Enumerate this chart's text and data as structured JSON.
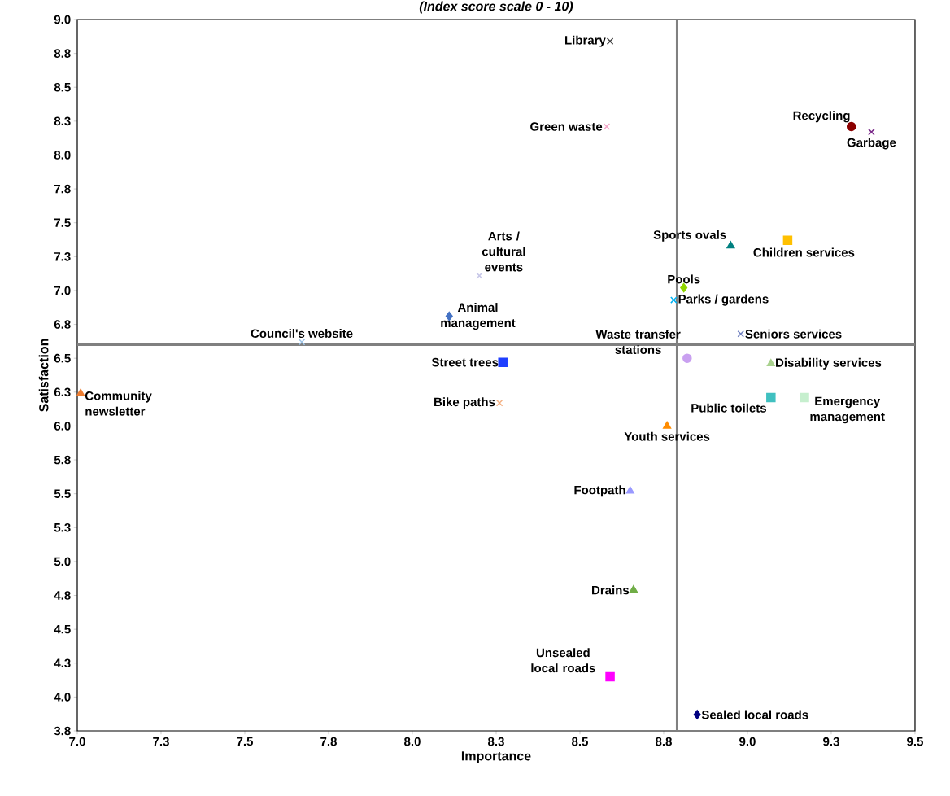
{
  "chart_data": {
    "type": "scatter",
    "title": "(Index score scale 0 - 10)",
    "xlabel": "Importance",
    "ylabel": "Satisfaction",
    "xlim": [
      7.0,
      9.5
    ],
    "ylim": [
      3.75,
      9.0
    ],
    "xticks": [
      {
        "value": 7.0,
        "label": "7.0"
      },
      {
        "value": 7.25,
        "label": "7.3"
      },
      {
        "value": 7.5,
        "label": "7.5"
      },
      {
        "value": 7.75,
        "label": "7.8"
      },
      {
        "value": 8.0,
        "label": "8.0"
      },
      {
        "value": 8.25,
        "label": "8.3"
      },
      {
        "value": 8.5,
        "label": "8.5"
      },
      {
        "value": 8.75,
        "label": "8.8"
      },
      {
        "value": 9.0,
        "label": "9.0"
      },
      {
        "value": 9.25,
        "label": "9.3"
      },
      {
        "value": 9.5,
        "label": "9.5"
      }
    ],
    "yticks": [
      {
        "value": 3.75,
        "label": "3.8"
      },
      {
        "value": 4.0,
        "label": "4.0"
      },
      {
        "value": 4.25,
        "label": "4.3"
      },
      {
        "value": 4.5,
        "label": "4.5"
      },
      {
        "value": 4.75,
        "label": "4.8"
      },
      {
        "value": 5.0,
        "label": "5.0"
      },
      {
        "value": 5.25,
        "label": "5.3"
      },
      {
        "value": 5.5,
        "label": "5.5"
      },
      {
        "value": 5.75,
        "label": "5.8"
      },
      {
        "value": 6.0,
        "label": "6.0"
      },
      {
        "value": 6.25,
        "label": "6.3"
      },
      {
        "value": 6.5,
        "label": "6.5"
      },
      {
        "value": 6.75,
        "label": "6.8"
      },
      {
        "value": 7.0,
        "label": "7.0"
      },
      {
        "value": 7.25,
        "label": "7.3"
      },
      {
        "value": 7.5,
        "label": "7.5"
      },
      {
        "value": 7.75,
        "label": "7.8"
      },
      {
        "value": 8.0,
        "label": "8.0"
      },
      {
        "value": 8.25,
        "label": "8.3"
      },
      {
        "value": 8.5,
        "label": "8.5"
      },
      {
        "value": 8.75,
        "label": "8.8"
      },
      {
        "value": 9.0,
        "label": "9.0"
      }
    ],
    "ref_lines": [
      {
        "axis": "x",
        "value": 8.79,
        "color": "#808080"
      },
      {
        "axis": "y",
        "value": 6.6,
        "color": "#808080"
      }
    ],
    "series": [
      {
        "name": "Library",
        "color": "#404040",
        "marker": "cross",
        "x": [
          8.59
        ],
        "values": [
          8.84
        ]
      },
      {
        "name": "Green waste",
        "color": "#f4a6c8",
        "marker": "cross",
        "x": [
          8.58
        ],
        "values": [
          8.21
        ]
      },
      {
        "name": "Recycling",
        "color": "#8b0000",
        "marker": "circle",
        "x": [
          9.31
        ],
        "values": [
          8.21
        ]
      },
      {
        "name": "Garbage",
        "color": "#7b2a8a",
        "marker": "cross",
        "x": [
          9.37
        ],
        "values": [
          8.17
        ]
      },
      {
        "name": "Sports ovals",
        "color": "#008080",
        "marker": "triangle",
        "x": [
          8.95
        ],
        "values": [
          7.33
        ]
      },
      {
        "name": "Children services",
        "color": "#ffc000",
        "marker": "square",
        "x": [
          9.12
        ],
        "values": [
          7.37
        ]
      },
      {
        "name": "Pools",
        "color": "#8fd400",
        "marker": "diamond",
        "x": [
          8.81
        ],
        "values": [
          7.02
        ]
      },
      {
        "name": "Parks / gardens",
        "color": "#00b0f0",
        "marker": "cross",
        "x": [
          8.78
        ],
        "values": [
          6.93
        ]
      },
      {
        "name": "Seniors services",
        "color": "#6f7fbf",
        "marker": "cross",
        "x": [
          8.98
        ],
        "values": [
          6.68
        ]
      },
      {
        "name": "Arts / cultural events",
        "color": "#c8c8e8",
        "marker": "cross",
        "x": [
          8.2
        ],
        "values": [
          7.11
        ]
      },
      {
        "name": "Animal management",
        "color": "#4472c4",
        "marker": "diamond",
        "x": [
          8.11
        ],
        "values": [
          6.81
        ]
      },
      {
        "name": "Council's website",
        "color": "#9dc3e6",
        "marker": "cross",
        "x": [
          7.67
        ],
        "values": [
          6.62
        ]
      },
      {
        "name": "Waste transfer stations",
        "color": "#c9a0f0",
        "marker": "circle",
        "x": [
          8.82
        ],
        "values": [
          6.5
        ]
      },
      {
        "name": "Disability services",
        "color": "#a9d18e",
        "marker": "triangle",
        "x": [
          9.07
        ],
        "values": [
          6.46
        ]
      },
      {
        "name": "Street trees",
        "color": "#1f3fff",
        "marker": "square",
        "x": [
          8.27
        ],
        "values": [
          6.47
        ]
      },
      {
        "name": "Community newsletter",
        "color": "#ed7d31",
        "marker": "triangle",
        "x": [
          7.01
        ],
        "values": [
          6.24
        ]
      },
      {
        "name": "Bike paths",
        "color": "#f4b183",
        "marker": "cross",
        "x": [
          8.26
        ],
        "values": [
          6.17
        ]
      },
      {
        "name": "Public toilets",
        "color": "#40c0c0",
        "marker": "square",
        "x": [
          9.07
        ],
        "values": [
          6.21
        ]
      },
      {
        "name": "Emergency management",
        "color": "#c6efce",
        "marker": "square",
        "x": [
          9.17
        ],
        "values": [
          6.21
        ]
      },
      {
        "name": "Youth services",
        "color": "#ff8c00",
        "marker": "triangle",
        "x": [
          8.76
        ],
        "values": [
          6.0
        ]
      },
      {
        "name": "Footpath",
        "color": "#9999ff",
        "marker": "triangle",
        "x": [
          8.65
        ],
        "values": [
          5.52
        ]
      },
      {
        "name": "Drains",
        "color": "#70ad47",
        "marker": "triangle",
        "x": [
          8.66
        ],
        "values": [
          4.79
        ]
      },
      {
        "name": "Unsealed local roads",
        "color": "#ff00ff",
        "marker": "square",
        "x": [
          8.59
        ],
        "values": [
          4.15
        ]
      },
      {
        "name": "Sealed local roads",
        "color": "#000080",
        "marker": "diamond",
        "x": [
          8.85
        ],
        "values": [
          3.87
        ]
      }
    ]
  }
}
